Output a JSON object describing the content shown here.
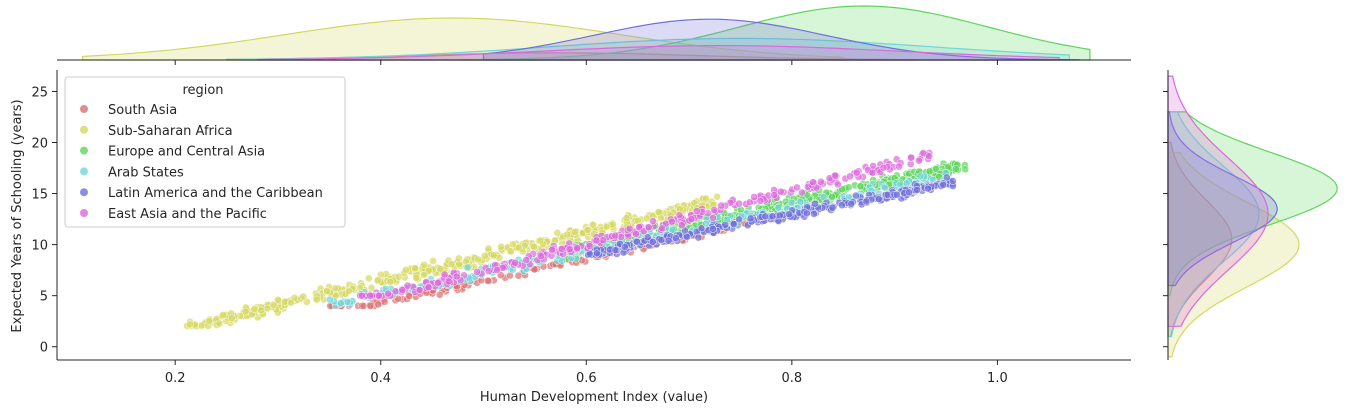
{
  "chart_data": {
    "type": "scatter",
    "xlabel": "Human Development Index (value)",
    "ylabel": "Expected Years of Schooling (years)",
    "xlim": [
      0.085,
      1.13
    ],
    "ylim": [
      -1.3,
      27.1
    ],
    "x_ticks": [
      0.2,
      0.4,
      0.6,
      0.8,
      1.0
    ],
    "x_tick_labels": [
      "0.2",
      "0.4",
      "0.6",
      "0.8",
      "1.0"
    ],
    "y_ticks": [
      0,
      5,
      10,
      15,
      20,
      25
    ],
    "y_tick_labels": [
      "0",
      "5",
      "10",
      "15",
      "20",
      "25"
    ],
    "legend": {
      "title": "region",
      "placement": "top-left"
    },
    "marginals": {
      "top": "kde of x by region",
      "right": "kde of y by region"
    },
    "series": [
      {
        "name": "South Asia",
        "color": "#db7070",
        "x_range": [
          0.35,
          0.8
        ],
        "y_range": [
          4,
          17
        ],
        "x_peak": 0.57,
        "y_peak": 10.5
      },
      {
        "name": "Sub-Saharan Africa",
        "color": "#d5d85f",
        "x_range": [
          0.21,
          0.73
        ],
        "y_range": [
          2,
          16
        ],
        "x_peak": 0.47,
        "y_peak": 10.0
      },
      {
        "name": "Europe and Central Asia",
        "color": "#5ed65e",
        "x_range": [
          0.58,
          0.97
        ],
        "y_range": [
          8,
          20
        ],
        "x_peak": 0.87,
        "y_peak": 15.5
      },
      {
        "name": "Arab States",
        "color": "#6fd6d9",
        "x_range": [
          0.35,
          0.95
        ],
        "y_range": [
          4,
          20
        ],
        "x_peak": 0.75,
        "y_peak": 13.0
      },
      {
        "name": "Latin America and the Caribbean",
        "color": "#7070db",
        "x_range": [
          0.6,
          0.96
        ],
        "y_range": [
          9,
          20
        ],
        "x_peak": 0.72,
        "y_peak": 13.5
      },
      {
        "name": "East Asia and the Pacific",
        "color": "#db69db",
        "x_range": [
          0.38,
          0.94
        ],
        "y_range": [
          5,
          23.5
        ],
        "x_peak": 0.73,
        "y_peak": 13.0
      }
    ]
  }
}
